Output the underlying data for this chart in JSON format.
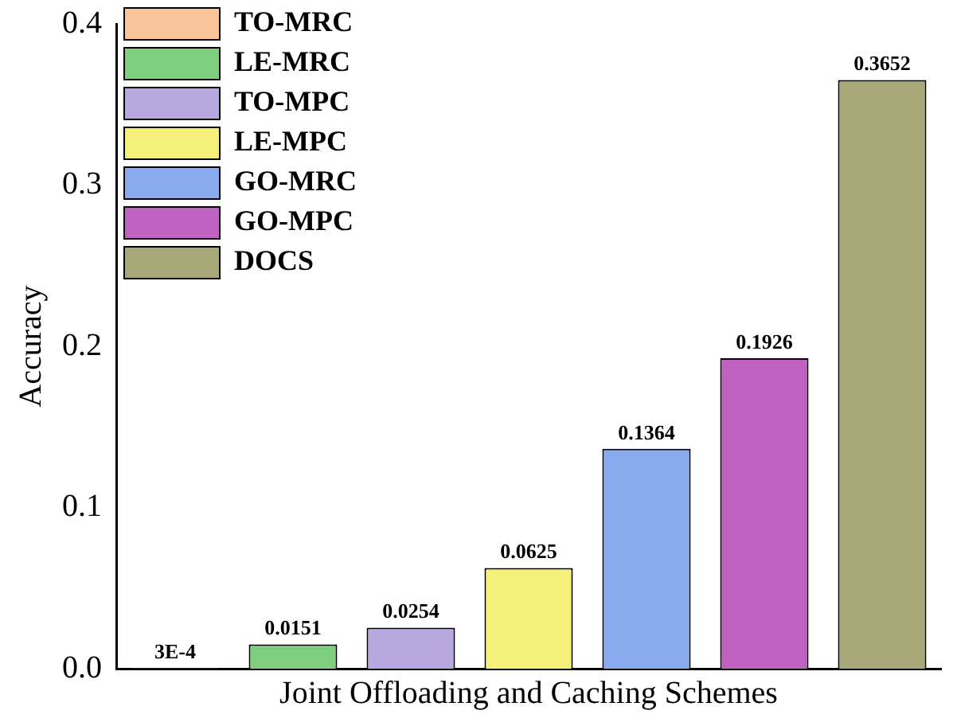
{
  "chart_data": {
    "type": "bar",
    "xlabel": "Joint Offloading and Caching Schemes",
    "ylabel": "Accuracy",
    "categories": [
      null,
      null,
      null,
      null,
      null,
      null,
      null
    ],
    "series": [
      {
        "name": "TO-MRC",
        "color": "#f9c49a",
        "values": [
          0.0003,
          null,
          null,
          null,
          null,
          null,
          null
        ],
        "value_labels": [
          "3E-4",
          null,
          null,
          null,
          null,
          null,
          null
        ]
      },
      {
        "name": "LE-MRC",
        "color": "#7fcf7f",
        "values": [
          null,
          0.0151,
          null,
          null,
          null,
          null,
          null
        ],
        "value_labels": [
          null,
          "0.0151",
          null,
          null,
          null,
          null,
          null
        ]
      },
      {
        "name": "TO-MPC",
        "color": "#b8a8e0",
        "values": [
          null,
          null,
          0.0254,
          null,
          null,
          null,
          null
        ],
        "value_labels": [
          null,
          null,
          "0.0254",
          null,
          null,
          null,
          null
        ]
      },
      {
        "name": "LE-MPC",
        "color": "#f5f07a",
        "values": [
          null,
          null,
          null,
          0.0625,
          null,
          null,
          null
        ],
        "value_labels": [
          null,
          null,
          null,
          "0.0625",
          null,
          null,
          null
        ]
      },
      {
        "name": "GO-MRC",
        "color": "#8aaaf0",
        "values": [
          null,
          null,
          null,
          null,
          0.1364,
          null,
          null
        ],
        "value_labels": [
          null,
          null,
          null,
          null,
          "0.1364",
          null,
          null
        ]
      },
      {
        "name": "GO-MPC",
        "color": "#c060c0",
        "values": [
          null,
          null,
          null,
          null,
          null,
          0.1926,
          null
        ],
        "value_labels": [
          null,
          null,
          null,
          null,
          null,
          "0.1926",
          null
        ]
      },
      {
        "name": "DOCS",
        "color": "#a8a878",
        "values": [
          null,
          null,
          null,
          null,
          null,
          null,
          0.3652
        ],
        "value_labels": [
          null,
          null,
          null,
          null,
          null,
          null,
          "0.3652"
        ]
      }
    ],
    "ylim": [
      0,
      0.4
    ],
    "yticks": [
      {
        "value": 0,
        "label": "0.0"
      },
      {
        "value": 0.1,
        "label": "0.1"
      },
      {
        "value": 0.2,
        "label": "0.2"
      },
      {
        "value": 0.3,
        "label": "0.3"
      },
      {
        "value": 0.4,
        "label": "0.4"
      }
    ],
    "grid": false,
    "legend": "top left",
    "tick_labels": "y"
  }
}
